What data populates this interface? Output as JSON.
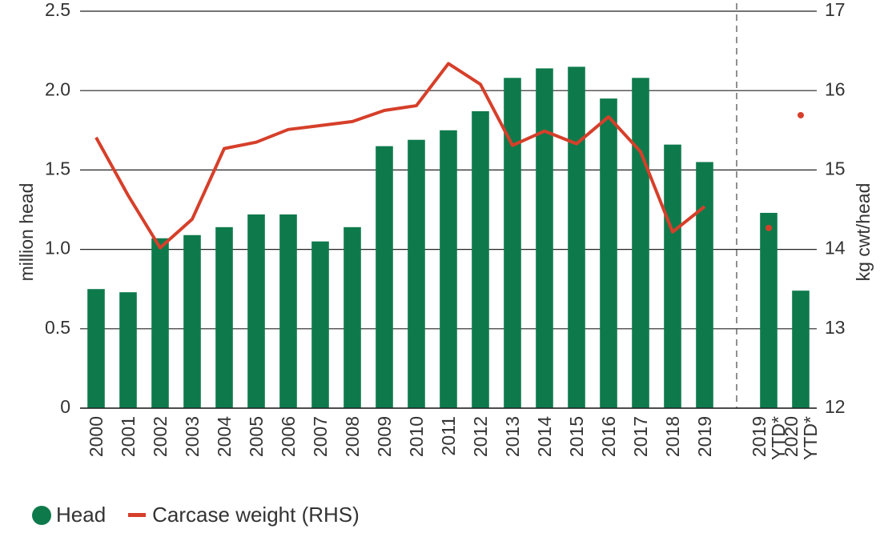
{
  "chart_data": {
    "type": "bar-line",
    "categories": [
      "2000",
      "2001",
      "2002",
      "2003",
      "2004",
      "2005",
      "2006",
      "2007",
      "2008",
      "2009",
      "2010",
      "2011",
      "2012",
      "2013",
      "2014",
      "2015",
      "2016",
      "2017",
      "2018",
      "2019",
      null,
      "2019\nYTD*",
      "2020\nYTD*"
    ],
    "series": [
      {
        "name": "Head",
        "color": "#0e7a4c",
        "type": "bar",
        "values": [
          0.75,
          0.73,
          1.07,
          1.09,
          1.14,
          1.22,
          1.22,
          1.05,
          1.14,
          1.65,
          1.69,
          1.75,
          1.87,
          2.08,
          2.14,
          2.15,
          1.95,
          2.08,
          1.66,
          1.55,
          null,
          1.23,
          0.74
        ]
      },
      {
        "name": "Carcase weight (RHS)",
        "color": "#d63f2a",
        "type": "line",
        "axis": "y2",
        "values": [
          15.41,
          14.68,
          14.02,
          14.38,
          15.27,
          15.35,
          15.51,
          15.56,
          15.61,
          15.75,
          15.81,
          16.34,
          16.08,
          15.31,
          15.49,
          15.33,
          15.67,
          15.23,
          14.22,
          14.54,
          null,
          14.27,
          15.69
        ]
      }
    ],
    "ylabel": "million head",
    "y2label": "kg cwt/head",
    "ylim": [
      0,
      2.5
    ],
    "yticks": [
      0,
      0.5,
      {
        "value": 1,
        "label": "1.0"
      },
      1.5,
      {
        "value": 2,
        "label": "2.0"
      },
      2.5
    ],
    "y2lim": [
      12,
      17
    ],
    "y2ticks": [
      12,
      13,
      14,
      15,
      16,
      17
    ],
    "grid": true,
    "legend": "bottom-left"
  }
}
